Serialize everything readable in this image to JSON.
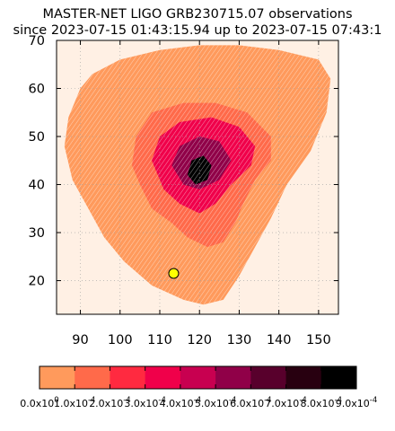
{
  "chart_data": {
    "type": "heatmap",
    "title": "MASTER-NET LIGO GRB230715.07 observations",
    "subtitle": "since 2023-07-15 01:43:15.94 up to 2023-07-15 07:43:1",
    "xlabel": "",
    "ylabel": "",
    "xlim": [
      84,
      155
    ],
    "ylim": [
      13,
      70
    ],
    "x_ticks": [
      90,
      100,
      110,
      120,
      130,
      140,
      150
    ],
    "y_ticks": [
      20,
      30,
      40,
      50,
      60,
      70
    ],
    "grid": true,
    "colorbar": {
      "range": [
        0,
        0.0009
      ],
      "tick_labels": [
        "0.0x10",
        "1.0x10",
        "2.0x10",
        "3.0x10",
        "4.0x10",
        "5.0x10",
        "6.0x10",
        "7.0x10",
        "8.0x10",
        "9.0x10"
      ],
      "tick_exponents": [
        "0",
        "-4",
        "-4",
        "-4",
        "-4",
        "-4",
        "-4",
        "-4",
        "-4",
        "-4"
      ],
      "colors": [
        "#ff9a5c",
        "#ff6a4a",
        "#ff2a40",
        "#f0004a",
        "#c80050",
        "#900048",
        "#58002c",
        "#280010",
        "#000000"
      ]
    },
    "background_color": "#fff0e4",
    "coverage_color": "#ff9a5c",
    "marker": {
      "x": 113.5,
      "y": 21.5,
      "color": "#ffff00"
    },
    "regions": [
      {
        "name": "outer-coverage",
        "value": 0.0,
        "polygon": [
          [
            86,
            48
          ],
          [
            87,
            54
          ],
          [
            90,
            60
          ],
          [
            93,
            63
          ],
          [
            100,
            66
          ],
          [
            110,
            68
          ],
          [
            120,
            69
          ],
          [
            130,
            69
          ],
          [
            140,
            68
          ],
          [
            150,
            66
          ],
          [
            153,
            62
          ],
          [
            152,
            55
          ],
          [
            148,
            47
          ],
          [
            142,
            40
          ],
          [
            138,
            33
          ],
          [
            134,
            27
          ],
          [
            130,
            21
          ],
          [
            126,
            16
          ],
          [
            121,
            15
          ],
          [
            116,
            16
          ],
          [
            108,
            19
          ],
          [
            101,
            24
          ],
          [
            96,
            29
          ],
          [
            92,
            35
          ],
          [
            88,
            41
          ]
        ]
      },
      {
        "name": "inner-region",
        "value": 0.00015,
        "polygon": [
          [
            103,
            44
          ],
          [
            104,
            50
          ],
          [
            108,
            55
          ],
          [
            116,
            57
          ],
          [
            124,
            57
          ],
          [
            132,
            55
          ],
          [
            138,
            50
          ],
          [
            138,
            45
          ],
          [
            134,
            41
          ],
          [
            131,
            36
          ],
          [
            129,
            32
          ],
          [
            126,
            28
          ],
          [
            122,
            27
          ],
          [
            117,
            29
          ],
          [
            113,
            32
          ],
          [
            108,
            35
          ],
          [
            105,
            40
          ]
        ]
      },
      {
        "name": "mid-region",
        "value": 0.0003,
        "polygon": [
          [
            108,
            45
          ],
          [
            110,
            50
          ],
          [
            115,
            53
          ],
          [
            123,
            54
          ],
          [
            130,
            52
          ],
          [
            134,
            48
          ],
          [
            133,
            44
          ],
          [
            128,
            40
          ],
          [
            124,
            36
          ],
          [
            120,
            34
          ],
          [
            115,
            36
          ],
          [
            111,
            39
          ]
        ]
      },
      {
        "name": "high-region",
        "value": 0.0005,
        "polygon": [
          [
            113,
            44
          ],
          [
            115,
            48
          ],
          [
            120,
            50
          ],
          [
            125,
            49
          ],
          [
            128,
            45
          ],
          [
            125,
            41
          ],
          [
            120,
            39
          ],
          [
            116,
            40
          ]
        ]
      },
      {
        "name": "peak-region",
        "value": 0.0008,
        "polygon": [
          [
            117,
            42
          ],
          [
            118,
            45
          ],
          [
            121,
            46
          ],
          [
            123,
            44
          ],
          [
            122,
            41
          ],
          [
            119,
            40
          ]
        ]
      }
    ]
  }
}
